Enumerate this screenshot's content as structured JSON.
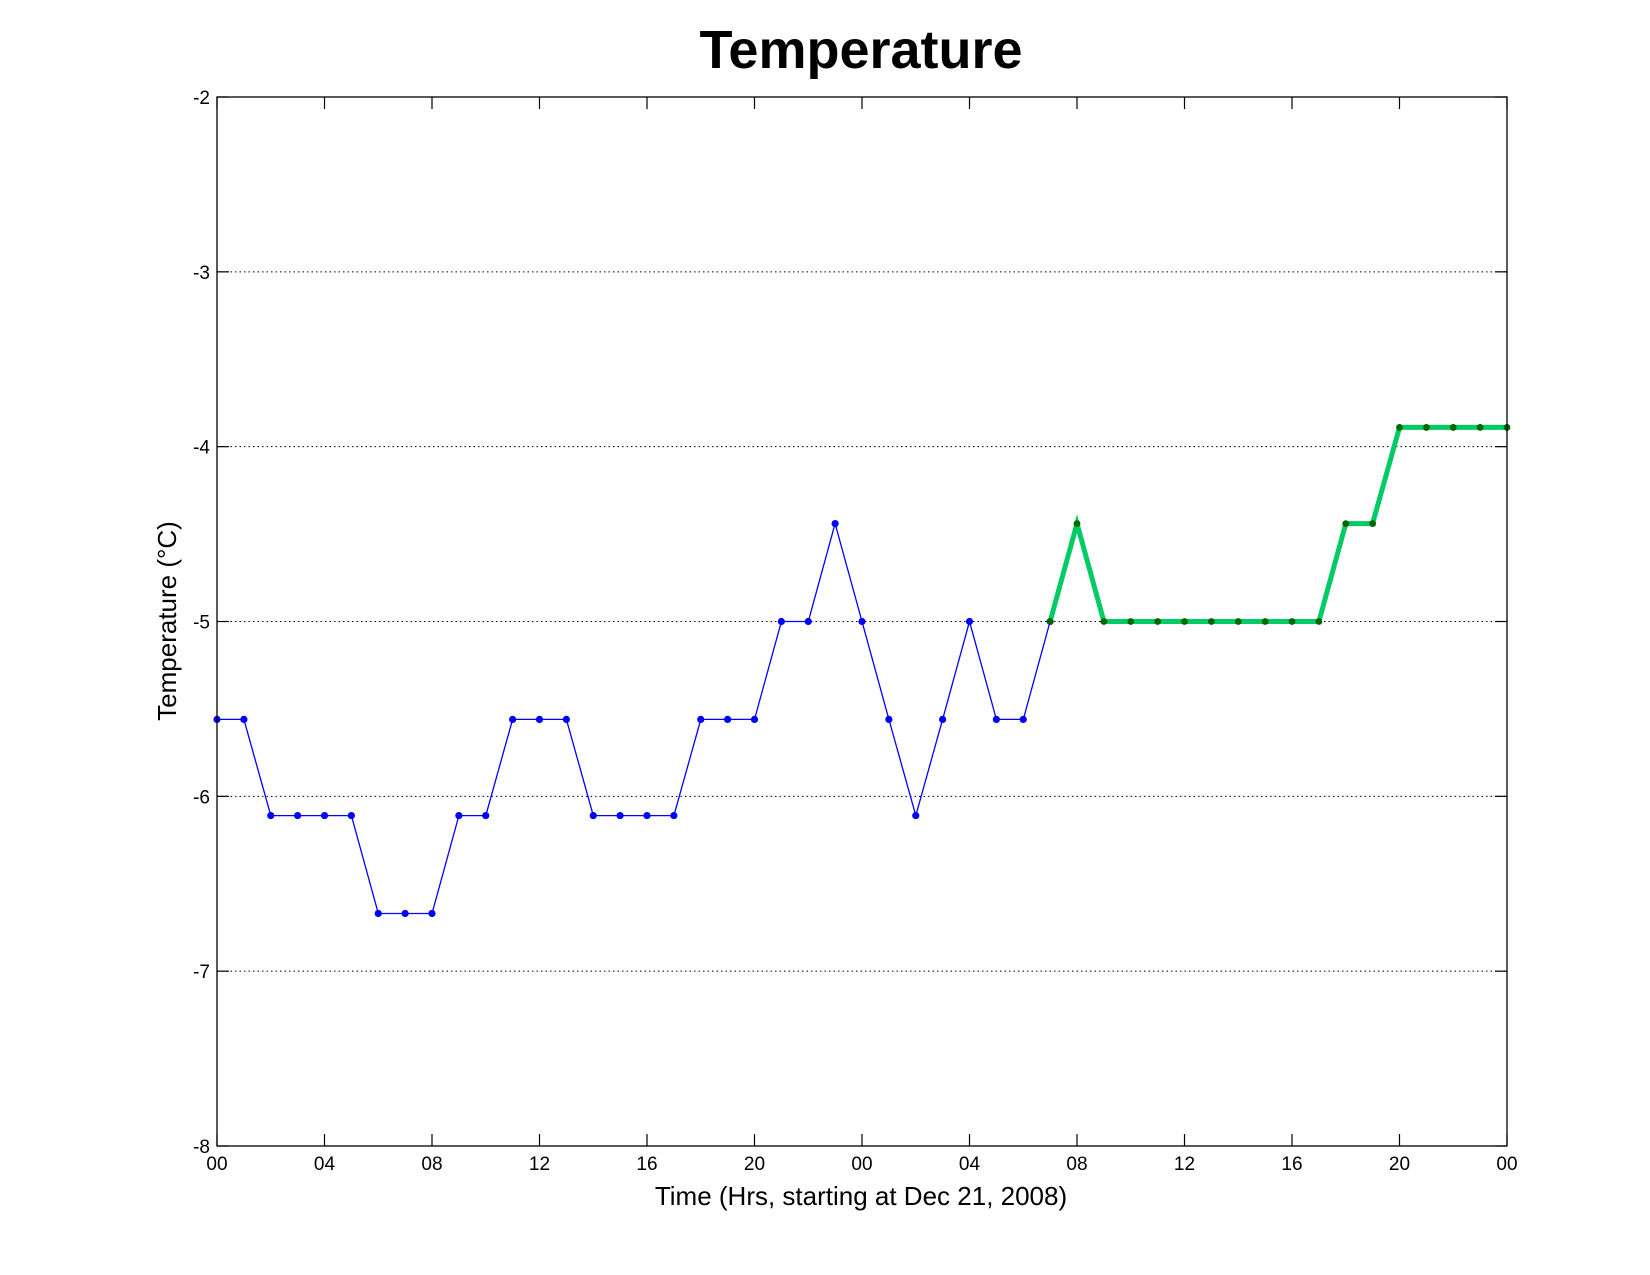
{
  "chart_data": {
    "type": "line",
    "title": "Temperature",
    "xlabel": "Time (Hrs, starting at Dec 21, 2008)",
    "ylabel": "Temperature (°C)",
    "ylim": [
      -8,
      -2
    ],
    "xlim": [
      "2008-12-21 00:00",
      "2008-12-23 00:00"
    ],
    "grid": "horizontal dotted",
    "x_tick_labels": [
      "00",
      "04",
      "08",
      "12",
      "16",
      "20",
      "00",
      "04",
      "08",
      "12",
      "16",
      "20",
      "00"
    ],
    "y_tick_labels": [
      "-2",
      "-3",
      "-4",
      "-5",
      "-6",
      "-7",
      "-8"
    ],
    "series": [
      {
        "color": "#0000ff",
        "style": "thin line with dot markers",
        "x": [
          "2008-12-21 00:00",
          "2008-12-21 01:00",
          "2008-12-21 02:00",
          "2008-12-21 03:00",
          "2008-12-21 04:00",
          "2008-12-21 05:00",
          "2008-12-21 06:00",
          "2008-12-21 07:00",
          "2008-12-21 08:00",
          "2008-12-21 09:00",
          "2008-12-21 10:00",
          "2008-12-21 11:00",
          "2008-12-21 12:00",
          "2008-12-21 13:00",
          "2008-12-21 14:00",
          "2008-12-21 15:00",
          "2008-12-21 16:00",
          "2008-12-21 17:00",
          "2008-12-21 18:00",
          "2008-12-21 19:00",
          "2008-12-21 20:00",
          "2008-12-21 21:00",
          "2008-12-21 22:00",
          "2008-12-21 23:00",
          "2008-12-22 00:00",
          "2008-12-22 01:00",
          "2008-12-22 02:00",
          "2008-12-22 03:00",
          "2008-12-22 04:00",
          "2008-12-22 05:00",
          "2008-12-22 06:00",
          "2008-12-22 07:00"
        ],
        "values": [
          -5.56,
          -5.56,
          -6.11,
          -6.11,
          -6.11,
          -6.11,
          -6.67,
          -6.67,
          -6.67,
          -6.11,
          -6.11,
          -5.56,
          -5.56,
          -5.56,
          -6.11,
          -6.11,
          -6.11,
          -6.11,
          -5.56,
          -5.56,
          -5.56,
          -5.0,
          -5.0,
          -4.44,
          -5.0,
          -5.56,
          -6.11,
          -5.56,
          -5.0,
          -5.56,
          -5.56,
          -5.0
        ]
      },
      {
        "color": "#00cc66",
        "marker_color": "#006600",
        "style": "thick line with dot markers",
        "x": [
          "2008-12-22 07:00",
          "2008-12-22 08:00",
          "2008-12-22 09:00",
          "2008-12-22 10:00",
          "2008-12-22 11:00",
          "2008-12-22 12:00",
          "2008-12-22 13:00",
          "2008-12-22 14:00",
          "2008-12-22 15:00",
          "2008-12-22 16:00",
          "2008-12-22 17:00",
          "2008-12-22 18:00",
          "2008-12-22 19:00",
          "2008-12-22 20:00",
          "2008-12-22 21:00",
          "2008-12-22 22:00",
          "2008-12-22 23:00",
          "2008-12-23 00:00"
        ],
        "values": [
          -5.0,
          -4.44,
          -5.0,
          -5.0,
          -5.0,
          -5.0,
          -5.0,
          -5.0,
          -5.0,
          -5.0,
          -5.0,
          -4.44,
          -4.44,
          -3.89,
          -3.89,
          -3.89,
          -3.89,
          -3.89
        ]
      }
    ]
  }
}
